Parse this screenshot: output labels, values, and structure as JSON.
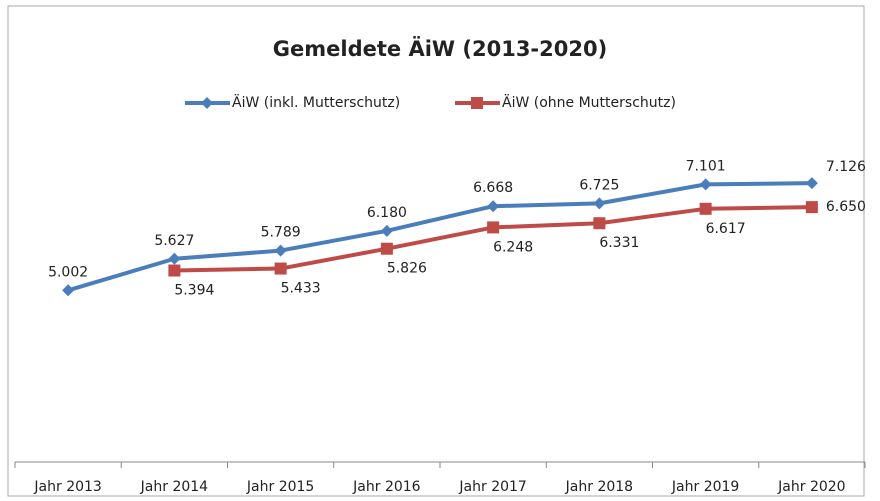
{
  "chart_data": {
    "type": "line",
    "title": "Gemeldete ÄiW (2013-2020)",
    "categories": [
      "Jahr 2013",
      "Jahr 2014",
      "Jahr 2015",
      "Jahr 2016",
      "Jahr 2017",
      "Jahr 2018",
      "Jahr 2019",
      "Jahr 2020"
    ],
    "series": [
      {
        "name": "ÄiW (inkl. Mutterschutz)",
        "color": "#4a7ebb",
        "marker": "diamond",
        "values": [
          5002,
          5627,
          5789,
          6180,
          6668,
          6725,
          7101,
          7126
        ],
        "value_labels": [
          "5.002",
          "5.627",
          "5.789",
          "6.180",
          "6.668",
          "6.725",
          "7.101",
          "7.126"
        ]
      },
      {
        "name": "ÄiW (ohne Mutterschutz)",
        "color": "#be4b48",
        "marker": "square",
        "values": [
          null,
          5394,
          5433,
          5826,
          6248,
          6331,
          6617,
          6650
        ],
        "value_labels": [
          null,
          "5.394",
          "5.433",
          "5.826",
          "6.248",
          "6.331",
          "6.617",
          "6.650"
        ]
      }
    ],
    "ylim": [
      1600,
      8000
    ],
    "legend": "top"
  }
}
